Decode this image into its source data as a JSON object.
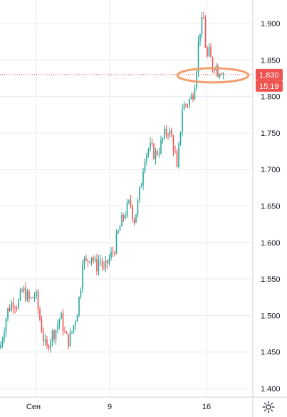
{
  "chart_data": {
    "type": "candlestick",
    "y_axis": {
      "position": "right",
      "ticks": [
        1.9,
        1.85,
        1.8,
        1.75,
        1.7,
        1.65,
        1.6,
        1.55,
        1.5,
        1.45,
        1.4
      ],
      "tick_labels": [
        "1.900",
        "1.850",
        "1.800",
        "1.750",
        "1.700",
        "1.650",
        "1.600",
        "1.550",
        "1.500",
        "1.450",
        "1.400"
      ],
      "range": [
        1.385,
        1.925
      ]
    },
    "x_axis": {
      "tick_labels": [
        "Сен",
        "9",
        "16"
      ]
    },
    "grid": true,
    "colors": {
      "up": "#26a69a",
      "down": "#ef5350",
      "grid": "#e9eaee",
      "axis_line": "#d1d4dc",
      "price_line": "#ef5350",
      "annotation": "#f0a070"
    },
    "current_price": {
      "value": 1.83,
      "label": "1.830",
      "countdown": "15:19"
    },
    "annotation": {
      "type": "ellipse",
      "price": 1.83
    },
    "series": [
      {
        "name": "",
        "waypoints": [
          [
            0,
            1.455
          ],
          [
            10,
            1.505
          ],
          [
            18,
            1.52
          ],
          [
            25,
            1.515
          ],
          [
            32,
            1.535
          ],
          [
            42,
            1.52
          ],
          [
            50,
            1.53
          ],
          [
            55,
            1.5
          ],
          [
            60,
            1.475
          ],
          [
            65,
            1.45
          ],
          [
            70,
            1.47
          ],
          [
            78,
            1.48
          ],
          [
            85,
            1.5
          ],
          [
            92,
            1.47
          ],
          [
            97,
            1.465
          ],
          [
            103,
            1.485
          ],
          [
            108,
            1.505
          ],
          [
            113,
            1.535
          ],
          [
            116,
            1.58
          ],
          [
            120,
            1.57
          ],
          [
            128,
            1.585
          ],
          [
            135,
            1.565
          ],
          [
            140,
            1.58
          ],
          [
            146,
            1.56
          ],
          [
            152,
            1.575
          ],
          [
            160,
            1.59
          ],
          [
            168,
            1.62
          ],
          [
            175,
            1.64
          ],
          [
            183,
            1.655
          ],
          [
            188,
            1.63
          ],
          [
            193,
            1.65
          ],
          [
            198,
            1.68
          ],
          [
            203,
            1.72
          ],
          [
            210,
            1.73
          ],
          [
            218,
            1.72
          ],
          [
            224,
            1.73
          ],
          [
            230,
            1.745
          ],
          [
            236,
            1.755
          ],
          [
            242,
            1.74
          ],
          [
            246,
            1.72
          ],
          [
            248,
            1.69
          ],
          [
            252,
            1.74
          ],
          [
            256,
            1.785
          ],
          [
            262,
            1.79
          ],
          [
            270,
            1.8
          ],
          [
            275,
            1.83
          ],
          [
            280,
            1.89
          ],
          [
            286,
            1.905
          ],
          [
            290,
            1.85
          ],
          [
            294,
            1.86
          ],
          [
            298,
            1.84
          ],
          [
            302,
            1.845
          ],
          [
            306,
            1.835
          ],
          [
            310,
            1.84
          ],
          [
            315,
            1.83
          ]
        ]
      }
    ]
  },
  "ui": {
    "settings_icon": "gear-icon"
  }
}
